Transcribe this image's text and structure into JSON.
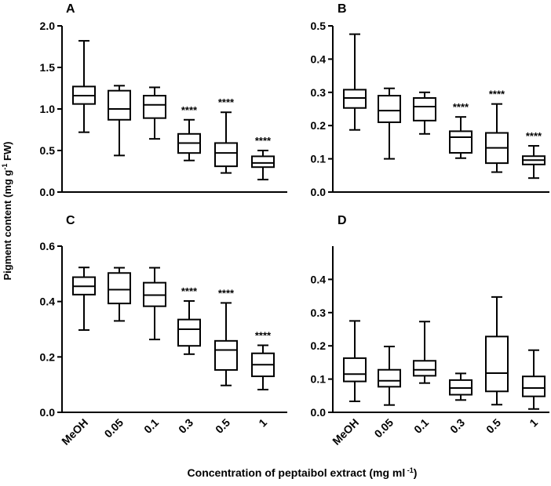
{
  "figure": {
    "ylabel_main": "Pigment content (mg g",
    "ylabel_sup": "-1",
    "ylabel_end": " FW)",
    "xlabel_main": "Concentration of peptaibol extract (mg ml",
    "xlabel_sup": " -1",
    "xlabel_end": ")",
    "categories": [
      "MeOH",
      "0.05",
      "0.1",
      "0.3",
      "0.5",
      "1"
    ]
  },
  "chart_data": [
    {
      "type": "box",
      "panel": "A",
      "categories": [
        "MeOH",
        "0.05",
        "0.1",
        "0.3",
        "0.5",
        "1"
      ],
      "ylim": [
        0,
        2.0
      ],
      "yticks": [
        0.0,
        0.5,
        1.0,
        1.5,
        2.0
      ],
      "ytick_labels": [
        "0.0",
        "0.5",
        "1.0",
        "1.5",
        "2.0"
      ],
      "boxes": [
        {
          "min": 0.72,
          "q1": 1.06,
          "median": 1.16,
          "q3": 1.27,
          "max": 1.82,
          "label": ""
        },
        {
          "min": 0.44,
          "q1": 0.87,
          "median": 1.0,
          "q3": 1.22,
          "max": 1.28,
          "label": ""
        },
        {
          "min": 0.64,
          "q1": 0.89,
          "median": 1.05,
          "q3": 1.16,
          "max": 1.26,
          "label": ""
        },
        {
          "min": 0.38,
          "q1": 0.47,
          "median": 0.59,
          "q3": 0.7,
          "max": 0.87,
          "label": "****"
        },
        {
          "min": 0.23,
          "q1": 0.31,
          "median": 0.47,
          "q3": 0.59,
          "max": 0.96,
          "label": "****"
        },
        {
          "min": 0.15,
          "q1": 0.3,
          "median": 0.35,
          "q3": 0.43,
          "max": 0.5,
          "label": "****"
        }
      ]
    },
    {
      "type": "box",
      "panel": "B",
      "categories": [
        "MeOH",
        "0.05",
        "0.1",
        "0.3",
        "0.5",
        "1"
      ],
      "ylim": [
        0,
        0.5
      ],
      "yticks": [
        0.0,
        0.1,
        0.2,
        0.3,
        0.4,
        0.5
      ],
      "ytick_labels": [
        "0.0",
        "0.1",
        "0.2",
        "0.3",
        "0.4",
        "0.5"
      ],
      "boxes": [
        {
          "min": 0.187,
          "q1": 0.253,
          "median": 0.283,
          "q3": 0.308,
          "max": 0.475,
          "label": ""
        },
        {
          "min": 0.1,
          "q1": 0.21,
          "median": 0.245,
          "q3": 0.29,
          "max": 0.312,
          "label": ""
        },
        {
          "min": 0.175,
          "q1": 0.215,
          "median": 0.257,
          "q3": 0.283,
          "max": 0.3,
          "label": ""
        },
        {
          "min": 0.102,
          "q1": 0.118,
          "median": 0.165,
          "q3": 0.183,
          "max": 0.226,
          "label": "****"
        },
        {
          "min": 0.06,
          "q1": 0.087,
          "median": 0.133,
          "q3": 0.178,
          "max": 0.265,
          "label": "****"
        },
        {
          "min": 0.042,
          "q1": 0.083,
          "median": 0.096,
          "q3": 0.108,
          "max": 0.139,
          "label": "****"
        }
      ]
    },
    {
      "type": "box",
      "panel": "C",
      "categories": [
        "MeOH",
        "0.05",
        "0.1",
        "0.3",
        "0.5",
        "1"
      ],
      "ylim": [
        0,
        0.6
      ],
      "yticks": [
        0.0,
        0.2,
        0.4,
        0.6
      ],
      "ytick_labels": [
        "0.0",
        "0.2",
        "0.4",
        "0.6"
      ],
      "boxes": [
        {
          "min": 0.297,
          "q1": 0.425,
          "median": 0.455,
          "q3": 0.488,
          "max": 0.523,
          "label": ""
        },
        {
          "min": 0.33,
          "q1": 0.393,
          "median": 0.443,
          "q3": 0.503,
          "max": 0.522,
          "label": ""
        },
        {
          "min": 0.263,
          "q1": 0.383,
          "median": 0.423,
          "q3": 0.468,
          "max": 0.522,
          "label": ""
        },
        {
          "min": 0.21,
          "q1": 0.24,
          "median": 0.3,
          "q3": 0.335,
          "max": 0.402,
          "label": "****"
        },
        {
          "min": 0.097,
          "q1": 0.153,
          "median": 0.225,
          "q3": 0.258,
          "max": 0.395,
          "label": "****"
        },
        {
          "min": 0.082,
          "q1": 0.13,
          "median": 0.172,
          "q3": 0.213,
          "max": 0.242,
          "label": "****"
        }
      ]
    },
    {
      "type": "box",
      "panel": "D",
      "categories": [
        "MeOH",
        "0.05",
        "0.1",
        "0.3",
        "0.5",
        "1"
      ],
      "ylim": [
        0,
        0.5
      ],
      "yticks": [
        0.0,
        0.1,
        0.2,
        0.3,
        0.4
      ],
      "ytick_labels": [
        "0.0",
        "0.1",
        "0.2",
        "0.3",
        "0.4"
      ],
      "boxes": [
        {
          "min": 0.033,
          "q1": 0.093,
          "median": 0.115,
          "q3": 0.163,
          "max": 0.275,
          "label": ""
        },
        {
          "min": 0.022,
          "q1": 0.077,
          "median": 0.095,
          "q3": 0.128,
          "max": 0.198,
          "label": ""
        },
        {
          "min": 0.088,
          "q1": 0.11,
          "median": 0.128,
          "q3": 0.155,
          "max": 0.273,
          "label": ""
        },
        {
          "min": 0.037,
          "q1": 0.053,
          "median": 0.073,
          "q3": 0.097,
          "max": 0.117,
          "label": ""
        },
        {
          "min": 0.023,
          "q1": 0.063,
          "median": 0.118,
          "q3": 0.228,
          "max": 0.347,
          "label": ""
        },
        {
          "min": 0.01,
          "q1": 0.048,
          "median": 0.073,
          "q3": 0.108,
          "max": 0.187,
          "label": ""
        }
      ]
    }
  ]
}
